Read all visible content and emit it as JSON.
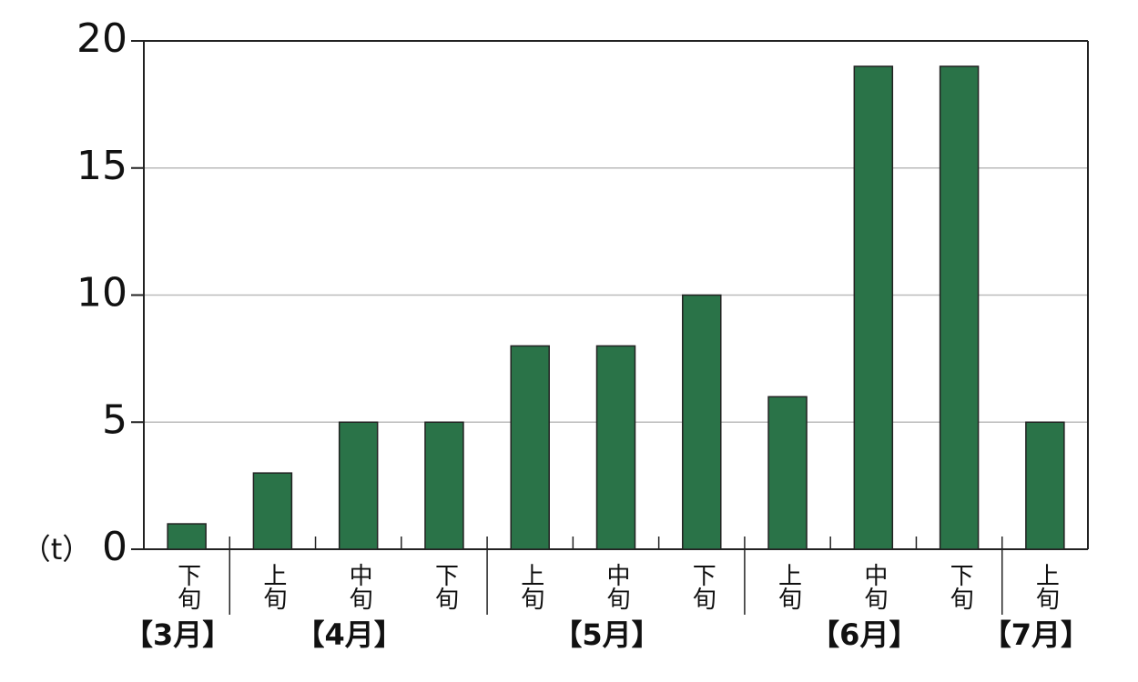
{
  "chart_data": {
    "type": "bar",
    "y_unit": "（t）",
    "groups": [
      {
        "label": "【3月】",
        "categories": [
          "下旬"
        ],
        "values": [
          1
        ]
      },
      {
        "label": "【4月】",
        "categories": [
          "上旬",
          "中旬",
          "下旬"
        ],
        "values": [
          3,
          5,
          5
        ]
      },
      {
        "label": "【5月】",
        "categories": [
          "上旬",
          "中旬",
          "下旬"
        ],
        "values": [
          8,
          8,
          10
        ]
      },
      {
        "label": "【6月】",
        "categories": [
          "上旬",
          "中旬",
          "下旬"
        ],
        "values": [
          6,
          19,
          19
        ]
      },
      {
        "label": "【7月】",
        "categories": [
          "上旬"
        ],
        "values": [
          5
        ]
      }
    ],
    "color": "#2a7348",
    "ylim": [
      0,
      20
    ],
    "yticks": [
      0,
      5,
      10,
      15,
      20
    ],
    "grid": true
  }
}
